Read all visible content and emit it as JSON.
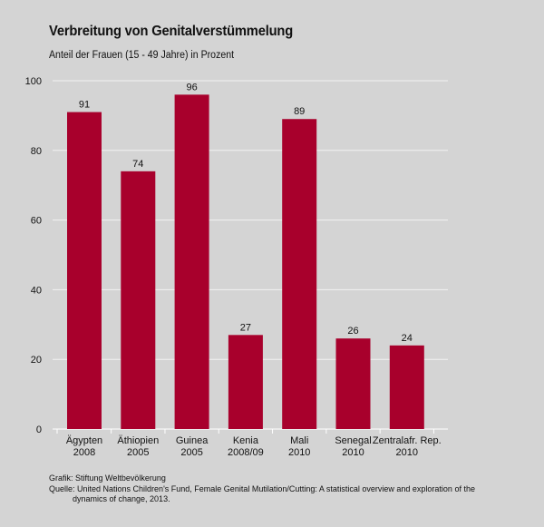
{
  "title": "Verbreitung von Genitalverstümmelung",
  "subtitle": "Anteil der Frauen (15 - 49 Jahre) in Prozent",
  "footer": {
    "grafik": "Grafik: Stiftung Weltbevölkerung",
    "quelle_line1": "Quelle: United Nations Children's Fund, Female Genital Mutilation/Cutting: A statistical overview and exploration of the",
    "quelle_line2": "dynamics of change, 2013."
  },
  "colors": {
    "bar": "#a8002c",
    "background": "#d4d4d4",
    "grid": "#f2f2f2"
  },
  "chart_data": {
    "type": "bar",
    "title": "Verbreitung von Genitalverstümmelung",
    "subtitle": "Anteil der Frauen (15 - 49 Jahre) in Prozent",
    "xlabel": "",
    "ylabel": "",
    "categories": [
      [
        "Ägypten",
        "2008"
      ],
      [
        "Äthiopien",
        "2005"
      ],
      [
        "Guinea",
        "2005"
      ],
      [
        "Kenia",
        "2008/09"
      ],
      [
        "Mali",
        "2010"
      ],
      [
        "Senegal",
        "2010"
      ],
      [
        "Zentralafr. Rep.",
        "2010"
      ]
    ],
    "values": [
      91,
      74,
      96,
      27,
      89,
      26,
      24
    ],
    "ylim": [
      0,
      100
    ],
    "yticks": [
      0,
      20,
      40,
      60,
      80,
      100
    ],
    "grid": true,
    "data_labels": true
  }
}
